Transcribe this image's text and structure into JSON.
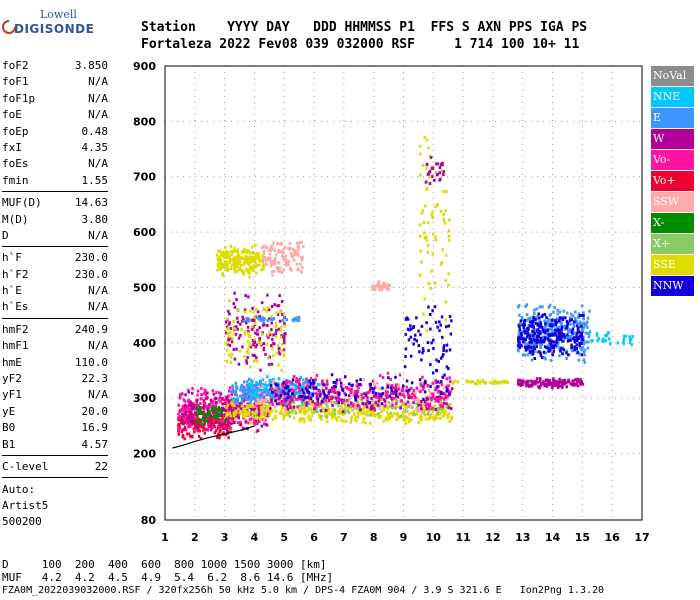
{
  "logo": {
    "brand": "Lowell",
    "product": "DIGISONDE"
  },
  "header": {
    "line1": "Station    YYYY DAY   DDD HHMMSS P1  FFS S AXN PPS IGA PS",
    "line2": "Fortaleza 2022 Fev08 039 032000 RSF     1 714 100 10+ 11"
  },
  "params": {
    "group1": [
      {
        "key": "foF2",
        "value": "3.850"
      },
      {
        "key": "foF1",
        "value": "N/A"
      },
      {
        "key": "foF1p",
        "value": "N/A"
      },
      {
        "key": "foE",
        "value": "N/A"
      },
      {
        "key": "foEp",
        "value": "0.48"
      },
      {
        "key": "fxI",
        "value": "4.35"
      },
      {
        "key": "foEs",
        "value": "N/A"
      },
      {
        "key": "fmin",
        "value": "1.55"
      }
    ],
    "group2": [
      {
        "key": "MUF(D)",
        "value": "14.63"
      },
      {
        "key": "M(D)",
        "value": "3.80"
      },
      {
        "key": "D",
        "value": "N/A"
      }
    ],
    "group3": [
      {
        "key": "h`F",
        "value": "230.0"
      },
      {
        "key": "h`F2",
        "value": "230.0"
      },
      {
        "key": "h`E",
        "value": "N/A"
      },
      {
        "key": "h`Es",
        "value": "N/A"
      }
    ],
    "group4": [
      {
        "key": "hmF2",
        "value": "240.9"
      },
      {
        "key": "hmF1",
        "value": "N/A"
      },
      {
        "key": "hmE",
        "value": "110.0"
      },
      {
        "key": "yF2",
        "value": "22.3"
      },
      {
        "key": "yF1",
        "value": "N/A"
      },
      {
        "key": "yE",
        "value": "20.0"
      },
      {
        "key": "B0",
        "value": "16.9"
      },
      {
        "key": "B1",
        "value": "4.57"
      }
    ],
    "group5": [
      {
        "key": "C-level",
        "value": "22"
      }
    ],
    "auto": [
      "Auto:",
      "Artist5",
      "500200"
    ]
  },
  "legend": [
    {
      "label": "NoVal",
      "color": "#8c8c8c"
    },
    {
      "label": "NNE",
      "color": "#00c8ff"
    },
    {
      "label": "E",
      "color": "#3c96ff"
    },
    {
      "label": "W",
      "color": "#b4009b"
    },
    {
      "label": "Vo-",
      "color": "#ff14a0"
    },
    {
      "label": "Vo+",
      "color": "#f00032"
    },
    {
      "label": "SSW",
      "color": "#ffaaaa"
    },
    {
      "label": "X-",
      "color": "#008c00"
    },
    {
      "label": "X+",
      "color": "#8cc864"
    },
    {
      "label": "SSE",
      "color": "#dcdc00"
    },
    {
      "label": "NNW",
      "color": "#1400dc"
    }
  ],
  "footer": {
    "line1": "D     100  200  400  600  800 1000 1500 3000 [km]",
    "line2": "MUF   4.2  4.2  4.5  4.9  5.4  6.2  8.6 14.6 [MHz]",
    "line3": "FZA0M_2022039032000.RSF / 320fx256h 50 kHz 5.0 km / DPS-4 FZA0M 904 / 3.9 S 321.6 E   Ion2Png 1.3.20"
  },
  "chart_data": {
    "type": "scatter",
    "xlim": [
      1,
      17
    ],
    "ylim": [
      80,
      900
    ],
    "x_ticks": [
      1,
      2,
      3,
      4,
      5,
      6,
      7,
      8,
      9,
      10,
      11,
      12,
      13,
      14,
      15,
      16,
      17
    ],
    "y_ticks": [
      80,
      200,
      300,
      400,
      500,
      600,
      700,
      800,
      900
    ],
    "grid": true,
    "legend_position": "right",
    "trace": [
      [
        1.25,
        210
      ],
      [
        1.6,
        215
      ],
      [
        2.0,
        222
      ],
      [
        2.4,
        228
      ],
      [
        2.8,
        233
      ],
      [
        3.2,
        238
      ],
      [
        3.6,
        243
      ],
      [
        4.0,
        250
      ]
    ],
    "clusters": [
      {
        "series": "Vo+",
        "x": [
          1.4,
          3.2
        ],
        "y": [
          225,
          300
        ],
        "n": 260
      },
      {
        "series": "Vo-",
        "x": [
          1.4,
          4.5
        ],
        "y": [
          240,
          330
        ],
        "n": 260
      },
      {
        "series": "W",
        "x": [
          1.5,
          4.5
        ],
        "y": [
          240,
          320
        ],
        "n": 160
      },
      {
        "series": "X-",
        "x": [
          2.0,
          3.0
        ],
        "y": [
          255,
          290
        ],
        "n": 45
      },
      {
        "series": "SSE",
        "x": [
          3.0,
          10.6
        ],
        "y": [
          255,
          300
        ],
        "n": 420
      },
      {
        "series": "E",
        "x": [
          3.2,
          5.8
        ],
        "y": [
          290,
          340
        ],
        "n": 260
      },
      {
        "series": "NNE",
        "x": [
          3.8,
          6.2
        ],
        "y": [
          295,
          345
        ],
        "n": 90
      },
      {
        "series": "X+",
        "x": [
          5.0,
          10.5
        ],
        "y": [
          265,
          310
        ],
        "n": 120
      },
      {
        "series": "SSW",
        "x": [
          4.0,
          10.5
        ],
        "y": [
          270,
          340
        ],
        "n": 160
      },
      {
        "series": "W",
        "x": [
          4.5,
          10.6
        ],
        "y": [
          275,
          330
        ],
        "n": 180
      },
      {
        "series": "Vo-",
        "x": [
          4.5,
          10.6
        ],
        "y": [
          280,
          350
        ],
        "n": 200
      },
      {
        "series": "NNW",
        "x": [
          4.5,
          10.6
        ],
        "y": [
          290,
          350
        ],
        "n": 110
      },
      {
        "series": "SSE",
        "x": [
          2.7,
          4.3
        ],
        "y": [
          520,
          580
        ],
        "n": 220
      },
      {
        "series": "SSW",
        "x": [
          4.2,
          5.6
        ],
        "y": [
          520,
          590
        ],
        "n": 110
      },
      {
        "series": "W",
        "x": [
          3.0,
          5.0
        ],
        "y": [
          350,
          500
        ],
        "n": 140
      },
      {
        "series": "SSE",
        "x": [
          3.0,
          5.0
        ],
        "y": [
          350,
          480
        ],
        "n": 80
      },
      {
        "series": "SSW",
        "x": [
          7.9,
          8.5
        ],
        "y": [
          495,
          515
        ],
        "n": 40
      },
      {
        "series": "E",
        "x": [
          3.5,
          5.5
        ],
        "y": [
          440,
          450
        ],
        "n": 30
      },
      {
        "series": "SSE",
        "x": [
          9.5,
          10.5
        ],
        "y": [
          400,
          800
        ],
        "n": 70
      },
      {
        "series": "W",
        "x": [
          9.7,
          10.4
        ],
        "y": [
          680,
          740
        ],
        "n": 30
      },
      {
        "series": "NNW",
        "x": [
          9.0,
          10.6
        ],
        "y": [
          340,
          480
        ],
        "n": 70
      },
      {
        "series": "E",
        "x": [
          12.8,
          15.2
        ],
        "y": [
          360,
          480
        ],
        "n": 300
      },
      {
        "series": "NNW",
        "x": [
          12.8,
          15.0
        ],
        "y": [
          370,
          460
        ],
        "n": 260
      },
      {
        "series": "W",
        "x": [
          12.8,
          15.0
        ],
        "y": [
          320,
          340
        ],
        "n": 130
      },
      {
        "series": "SSE",
        "x": [
          10.6,
          12.5
        ],
        "y": [
          328,
          336
        ],
        "n": 40
      },
      {
        "series": "NNE",
        "x": [
          15.2,
          16.8
        ],
        "y": [
          395,
          425
        ],
        "n": 30
      }
    ]
  }
}
